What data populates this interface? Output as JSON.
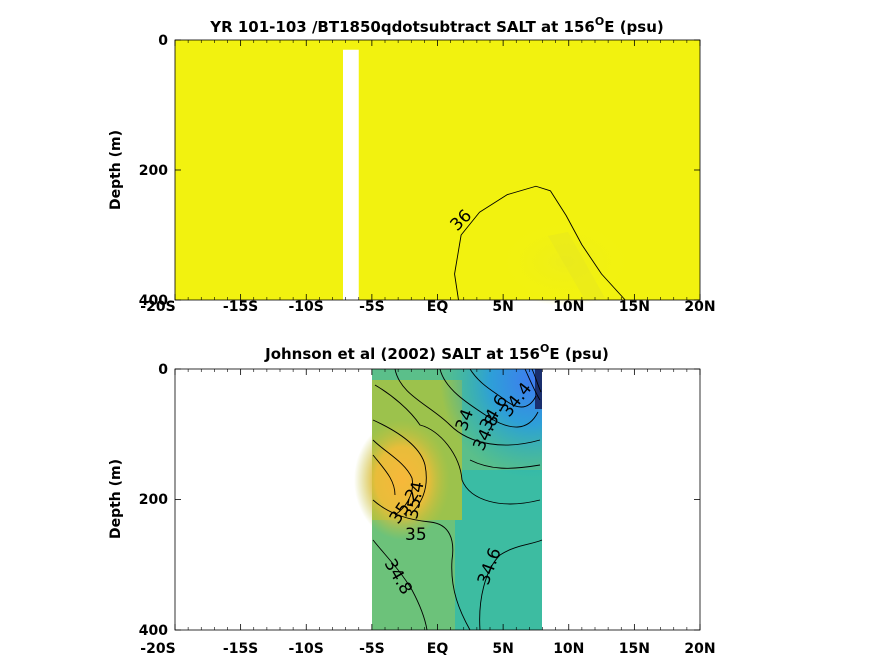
{
  "chart_data": [
    {
      "type": "heatmap",
      "title": "YR 101-103 /BT1850qdotsubtract SALT at 156",
      "title_sup": "O",
      "title_tail": "E (psu)",
      "ylabel": "Depth (m)",
      "xlim": [
        -20,
        20
      ],
      "ylim": [
        0,
        400
      ],
      "x_ticks": [
        -20,
        -15,
        -10,
        -5,
        0,
        5,
        10,
        15,
        20
      ],
      "x_tick_labels": [
        "-20S",
        "-15S",
        "-10S",
        "-5S",
        "EQ",
        "5N",
        "10N",
        "15N",
        "20N"
      ],
      "y_ticks": [
        0,
        200,
        400
      ],
      "y_tick_labels": [
        "0",
        "200",
        "400"
      ],
      "fill_color": "#f2f20f",
      "blank_strip": {
        "x_range": [
          -7.2,
          -6.0
        ],
        "y_range": [
          15,
          400
        ]
      },
      "contours": [
        {
          "level_label": "36",
          "points": [
            [
              1.6,
              400
            ],
            [
              1.3,
              360
            ],
            [
              1.8,
              300
            ],
            [
              3.2,
              265
            ],
            [
              5.3,
              238
            ],
            [
              7.5,
              225
            ],
            [
              8.6,
              232
            ],
            [
              9.8,
              270
            ],
            [
              11.0,
              315
            ],
            [
              12.5,
              360
            ],
            [
              14.3,
              400
            ]
          ],
          "label_at": [
            1.5,
            295
          ]
        }
      ]
    },
    {
      "type": "heatmap",
      "title": "Johnson et al (2002) SALT at 156",
      "title_sup": "O",
      "title_tail": "E (psu)",
      "ylabel": "Depth (m)",
      "xlim": [
        -20,
        20
      ],
      "ylim": [
        0,
        400
      ],
      "x_ticks": [
        -20,
        -15,
        -10,
        -5,
        0,
        5,
        10,
        15,
        20
      ],
      "x_tick_labels": [
        "-20S",
        "-15S",
        "-10S",
        "-5S",
        "EQ",
        "5N",
        "10N",
        "15N",
        "20N"
      ],
      "y_ticks": [
        0,
        200,
        400
      ],
      "y_tick_labels": [
        "0",
        "200",
        "400"
      ],
      "data_x_range": [
        -5,
        8
      ],
      "contour_labels": [
        {
          "text": "34.4",
          "at": [
            5.2,
            62
          ]
        },
        {
          "text": "34.6",
          "at": [
            4.0,
            90
          ]
        },
        {
          "text": "34.8",
          "at": [
            3.3,
            115
          ]
        },
        {
          "text": "34",
          "at": [
            2.3,
            80
          ]
        },
        {
          "text": "35.4",
          "at": [
            -1.3,
            200
          ]
        },
        {
          "text": "35.2",
          "at": [
            -1.9,
            222
          ]
        },
        {
          "text": "35",
          "at": [
            -1.4,
            255
          ]
        },
        {
          "text": "34.8",
          "at": [
            -3.0,
            320
          ]
        },
        {
          "text": "34.6",
          "at": [
            4.3,
            300
          ]
        }
      ]
    }
  ]
}
